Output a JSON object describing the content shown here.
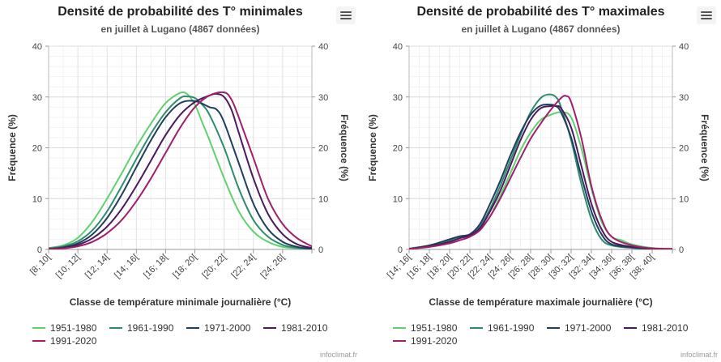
{
  "chart_data": [
    {
      "type": "line",
      "title": "Densité de probabilité des T° minimales",
      "subtitle": "en juillet à Lugano (4867 données)",
      "xlabel": "Classe de température minimale journalière (°C)",
      "ylabel": "Fréquence (%)",
      "ylabel_right": "Fréquence (%)",
      "ylim": [
        0,
        40
      ],
      "yticks": [
        0,
        10,
        20,
        30,
        40
      ],
      "xlim": [
        8,
        26
      ],
      "xticks": [
        8,
        10,
        12,
        14,
        16,
        18,
        20,
        22,
        24,
        26
      ],
      "categories": [
        "[8; 10[",
        "[10; 12[",
        "[12; 14[",
        "[14; 16[",
        "[16; 18[",
        "[18; 20[",
        "[20; 22[",
        "[22; 24[",
        "[24; 26["
      ],
      "grid": true,
      "legend_position": "bottom",
      "series": [
        {
          "name": "1951-1980",
          "color": "#5fd16f",
          "x": [
            8,
            9,
            10,
            11,
            12,
            13,
            14,
            15,
            16,
            17,
            17.5,
            18,
            18.5,
            19,
            20,
            21,
            22,
            23,
            24,
            25,
            26
          ],
          "values": [
            0.3,
            0.8,
            2.3,
            5.5,
            10.0,
            15.0,
            20.2,
            24.8,
            28.8,
            30.8,
            30.5,
            28.5,
            25.0,
            21.5,
            14.0,
            7.5,
            3.5,
            1.5,
            0.5,
            0.2,
            0.1
          ]
        },
        {
          "name": "1961-1990",
          "color": "#2e8b6e",
          "x": [
            8,
            9,
            10,
            11,
            12,
            13,
            14,
            15,
            16,
            17,
            17.5,
            18,
            18.5,
            19,
            20,
            21,
            22,
            23,
            24,
            25,
            26
          ],
          "values": [
            0.2,
            0.6,
            1.6,
            3.8,
            7.5,
            12.5,
            17.8,
            22.8,
            27.0,
            29.8,
            30.1,
            29.8,
            28.5,
            26.5,
            20.0,
            12.0,
            5.8,
            2.5,
            0.9,
            0.3,
            0.1
          ]
        },
        {
          "name": "1971-2000",
          "color": "#1f3f5c",
          "x": [
            8,
            9,
            10,
            11,
            12,
            13,
            14,
            15,
            16,
            17,
            18,
            19,
            19.5,
            20,
            21,
            22,
            23,
            24,
            25,
            26
          ],
          "values": [
            0.1,
            0.4,
            1.2,
            3.0,
            6.2,
            10.8,
            16.2,
            21.5,
            26.0,
            28.8,
            29.2,
            28.0,
            27.5,
            25.0,
            17.0,
            9.0,
            4.0,
            1.5,
            0.5,
            0.1
          ]
        },
        {
          "name": "1981-2010",
          "color": "#4a1a5c",
          "x": [
            8,
            9,
            10,
            11,
            12,
            13,
            14,
            15,
            16,
            17,
            18,
            19,
            19.5,
            20,
            20.5,
            21,
            22,
            23,
            24,
            25,
            26
          ],
          "values": [
            0.1,
            0.3,
            0.9,
            2.2,
            4.5,
            8.0,
            12.5,
            17.5,
            22.5,
            26.5,
            29.0,
            30.3,
            30.6,
            30.0,
            27.5,
            23.0,
            14.0,
            7.0,
            3.0,
            1.0,
            0.3
          ]
        },
        {
          "name": "1991-2020",
          "color": "#a01f6a",
          "x": [
            8,
            9,
            10,
            11,
            12,
            13,
            14,
            15,
            16,
            17,
            18,
            19,
            20,
            20.5,
            21,
            22,
            23,
            24,
            25,
            26
          ],
          "values": [
            0.1,
            0.2,
            0.6,
            1.5,
            3.2,
            5.8,
            9.5,
            14.0,
            19.0,
            24.0,
            28.0,
            30.3,
            30.9,
            29.5,
            26.0,
            18.0,
            10.0,
            5.0,
            2.2,
            0.6
          ]
        }
      ]
    },
    {
      "type": "line",
      "title": "Densité de probabilité des T° maximales",
      "subtitle": "en juillet à Lugano (4867 données)",
      "xlabel": "Classe de température maximale journalière (°C)",
      "ylabel": "Fréquence (%)",
      "ylabel_right": "Fréquence (%)",
      "ylim": [
        0,
        40
      ],
      "yticks": [
        0,
        10,
        20,
        30,
        40
      ],
      "xlim": [
        14,
        40
      ],
      "xticks": [
        14,
        16,
        18,
        20,
        22,
        24,
        26,
        28,
        30,
        32,
        34,
        36,
        38,
        40
      ],
      "categories": [
        "[14; 16[",
        "[16; 18[",
        "[18; 20[",
        "[20; 22[",
        "[22; 24[",
        "[24; 26[",
        "[26; 28[",
        "[28; 30[",
        "[30; 32[",
        "[32; 34[",
        "[34; 36[",
        "[36; 38[",
        "[38; 40["
      ],
      "grid": true,
      "legend_position": "bottom",
      "series": [
        {
          "name": "1951-1980",
          "color": "#5fd16f",
          "x": [
            14,
            16,
            18,
            19,
            20,
            21,
            22,
            23,
            24,
            25,
            26,
            27,
            28,
            29,
            30,
            31,
            32,
            33,
            34,
            35,
            36,
            38,
            40
          ],
          "values": [
            0.2,
            0.8,
            1.8,
            2.3,
            2.8,
            4.0,
            6.5,
            10.5,
            15.0,
            19.5,
            23.0,
            25.5,
            26.5,
            27.0,
            26.0,
            20.0,
            12.0,
            5.5,
            2.5,
            1.8,
            1.0,
            0.3,
            0.1
          ]
        },
        {
          "name": "1961-1990",
          "color": "#2e8b6e",
          "x": [
            14,
            16,
            18,
            19,
            20,
            21,
            22,
            23,
            24,
            25,
            26,
            27,
            27.8,
            28.5,
            29,
            30,
            31,
            32,
            33,
            34,
            36,
            38,
            40
          ],
          "values": [
            0.1,
            0.7,
            1.8,
            2.3,
            2.8,
            4.5,
            8.0,
            12.5,
            17.5,
            22.5,
            27.0,
            29.8,
            30.5,
            30.0,
            28.0,
            21.5,
            13.0,
            6.0,
            2.0,
            0.8,
            0.3,
            0.1,
            0.1
          ]
        },
        {
          "name": "1971-2000",
          "color": "#1f3f5c",
          "x": [
            14,
            16,
            18,
            19,
            20,
            21,
            22,
            23,
            24,
            25,
            26,
            27,
            28,
            28.5,
            29,
            30,
            31,
            32,
            33,
            34,
            36,
            38,
            40
          ],
          "values": [
            0.1,
            0.8,
            2.0,
            2.6,
            3.0,
            5.0,
            9.0,
            13.5,
            18.5,
            23.0,
            26.5,
            28.3,
            28.5,
            28.2,
            27.0,
            22.0,
            14.5,
            7.5,
            3.0,
            1.0,
            0.4,
            0.1,
            0.1
          ]
        },
        {
          "name": "1981-2010",
          "color": "#4a1a5c",
          "x": [
            14,
            16,
            18,
            19,
            20,
            21,
            22,
            23,
            24,
            25,
            26,
            27,
            28,
            28.5,
            29,
            30,
            31,
            32,
            33,
            34,
            36,
            38,
            40
          ],
          "values": [
            0.1,
            0.6,
            1.5,
            2.2,
            2.8,
            4.2,
            7.5,
            11.5,
            16.5,
            21.5,
            25.5,
            27.8,
            28.2,
            28.2,
            27.8,
            24.0,
            16.5,
            9.0,
            4.0,
            1.5,
            0.5,
            0.2,
            0.1
          ]
        },
        {
          "name": "1991-2020",
          "color": "#a01f6a",
          "x": [
            14,
            16,
            18,
            19,
            20,
            21,
            22,
            23,
            24,
            25,
            26,
            27,
            28,
            29,
            29.5,
            30,
            31,
            32,
            33,
            34,
            36,
            38,
            40
          ],
          "values": [
            0.1,
            0.5,
            1.2,
            1.8,
            2.5,
            3.8,
            6.5,
            10.0,
            14.0,
            18.0,
            21.8,
            24.8,
            27.5,
            29.8,
            30.2,
            29.0,
            22.0,
            12.5,
            6.0,
            2.5,
            0.8,
            0.2,
            0.1
          ]
        }
      ]
    }
  ],
  "credit": "infoclimat.fr",
  "icons": {
    "menu": "hamburger-menu-icon"
  }
}
